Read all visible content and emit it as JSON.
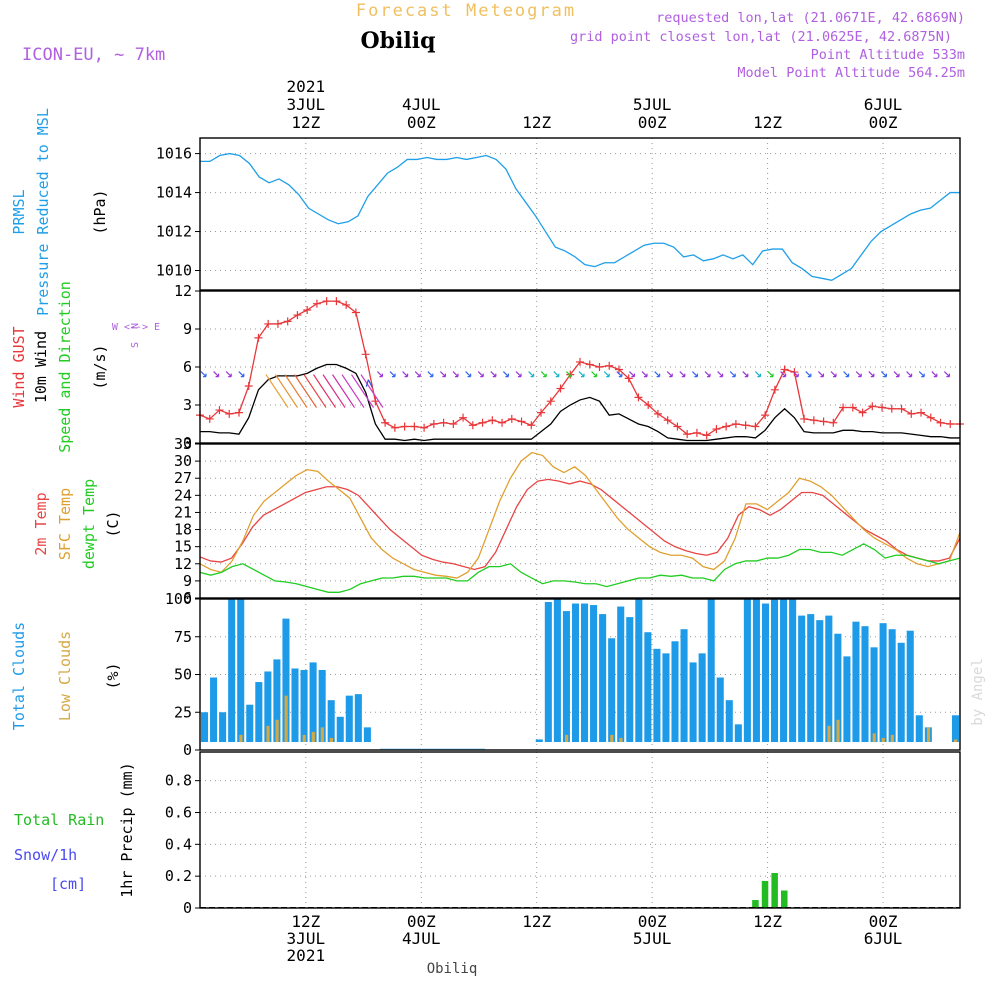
{
  "header": {
    "chart_name": "Forecast Meteogram",
    "location": "Obiliq",
    "model": "ICON-EU, ~ 7km",
    "requested": "requested lon,lat (21.0671E, 42.6869N)",
    "grid_point": "grid point closest lon,lat (21.0625E, 42.6875N)",
    "point_altitude": "Point Altitude 533m",
    "model_altitude": "Model Point Altitude 564.25m",
    "credit": "by Angel",
    "footer_location": "Obiliq"
  },
  "colors": {
    "pressure": "#1e9fe8",
    "gust": "#e8373a",
    "wind10m": "#000000",
    "wind_dir_label": "#b060e0",
    "temp2m": "#e84545",
    "sfc_temp": "#e0a030",
    "dewpt": "#22cc22",
    "total_clouds": "#1e9be8",
    "low_clouds": "#d4a843",
    "rain": "#22bb22",
    "snow": "#4a4af0",
    "header_purple": "#b060e0",
    "title_orange": "#f0c060"
  },
  "chart_data": [
    {
      "type": "line",
      "name": "pressure",
      "ylabels": [
        "PRMSL",
        "Pressure Reduced to MSL",
        "(hPa)"
      ],
      "ylim": [
        1009,
        1016.8
      ],
      "yticks": [
        1010,
        1012,
        1014,
        1016
      ],
      "series": [
        {
          "name": "PRMSL",
          "color_key": "pressure",
          "values": [
            1015.6,
            1015.6,
            1015.9,
            1016.0,
            1015.9,
            1015.5,
            1014.8,
            1014.5,
            1014.7,
            1014.4,
            1013.9,
            1013.2,
            1012.9,
            1012.6,
            1012.4,
            1012.5,
            1012.8,
            1013.8,
            1014.4,
            1015.0,
            1015.3,
            1015.7,
            1015.7,
            1015.8,
            1015.7,
            1015.7,
            1015.8,
            1015.7,
            1015.8,
            1015.9,
            1015.7,
            1015.2,
            1014.2,
            1013.5,
            1012.8,
            1012.0,
            1011.2,
            1011.0,
            1010.7,
            1010.3,
            1010.2,
            1010.4,
            1010.4,
            1010.7,
            1011.0,
            1011.3,
            1011.4,
            1011.4,
            1011.2,
            1010.7,
            1010.8,
            1010.5,
            1010.6,
            1010.8,
            1010.6,
            1010.8,
            1010.3,
            1011.0,
            1011.1,
            1011.1,
            1010.4,
            1010.1,
            1009.7,
            1009.6,
            1009.5,
            1009.8,
            1010.1,
            1010.8,
            1011.5,
            1012.0,
            1012.3,
            1012.6,
            1012.9,
            1013.1,
            1013.2,
            1013.6,
            1014.0,
            1014.0
          ]
        }
      ]
    },
    {
      "type": "line",
      "name": "wind",
      "ylabels": [
        "Wind GUST",
        "10m Wind",
        "Speed and Direction",
        "(m/s)"
      ],
      "ylim": [
        0,
        12
      ],
      "yticks": [
        0,
        3,
        6,
        9,
        12
      ],
      "compass": [
        "N",
        "W <--> E",
        "S"
      ],
      "series": [
        {
          "name": "Wind GUST",
          "color_key": "gust",
          "marker": "+",
          "values": [
            2.2,
            1.9,
            2.6,
            2.3,
            2.4,
            4.5,
            8.3,
            9.4,
            9.4,
            9.6,
            10.1,
            10.5,
            11.0,
            11.2,
            11.2,
            10.9,
            10.3,
            7.0,
            3.3,
            1.6,
            1.2,
            1.3,
            1.3,
            1.2,
            1.5,
            1.6,
            1.5,
            2.0,
            1.4,
            1.6,
            1.8,
            1.6,
            1.9,
            1.7,
            1.4,
            2.4,
            3.3,
            4.3,
            5.4,
            6.4,
            6.2,
            6.0,
            6.1,
            5.8,
            5.1,
            3.6,
            3.0,
            2.3,
            1.8,
            1.3,
            0.7,
            0.8,
            0.6,
            1.1,
            1.3,
            1.5,
            1.4,
            1.3,
            2.2,
            4.2,
            5.8,
            5.6,
            1.9,
            1.8,
            1.7,
            1.6,
            2.8,
            2.8,
            2.4,
            2.9,
            2.8,
            2.7,
            2.7,
            2.3,
            2.4,
            2.0,
            1.6,
            1.5,
            1.5
          ]
        },
        {
          "name": "10m Wind",
          "color_key": "wind10m",
          "values": [
            0.9,
            0.9,
            0.8,
            0.8,
            0.7,
            2.0,
            4.2,
            5.0,
            5.3,
            5.3,
            5.3,
            5.5,
            5.9,
            6.2,
            6.2,
            5.9,
            5.5,
            4.0,
            1.5,
            0.3,
            0.3,
            0.2,
            0.3,
            0.2,
            0.3,
            0.3,
            0.3,
            0.3,
            0.3,
            0.3,
            0.3,
            0.3,
            0.3,
            0.3,
            0.3,
            0.9,
            1.5,
            2.5,
            3.0,
            3.4,
            3.6,
            3.3,
            2.2,
            2.3,
            1.9,
            1.5,
            1.3,
            0.9,
            0.4,
            0.3,
            0.2,
            0.2,
            0.2,
            0.3,
            0.4,
            0.5,
            0.5,
            0.4,
            1.0,
            2.0,
            2.7,
            2.0,
            0.9,
            0.8,
            0.8,
            0.8,
            1.0,
            1.0,
            0.9,
            0.9,
            0.8,
            0.8,
            0.8,
            0.7,
            0.6,
            0.5,
            0.5,
            0.4,
            0.4
          ]
        }
      ],
      "direction_arrows": "vectors along the 5.4 m/s baseline (purple), strong wind barbs 3 JUL afternoon (orange/red/magenta), green/cyan near 4 JUL 12Z and 5 JUL 12Z"
    },
    {
      "type": "line",
      "name": "temperature",
      "ylabels": [
        "2m Temp",
        "SFC Temp",
        "dewpt Temp",
        "(C)"
      ],
      "ylim": [
        6,
        33
      ],
      "yticks": [
        6,
        9,
        12,
        15,
        18,
        21,
        24,
        27,
        30,
        33
      ],
      "series": [
        {
          "name": "2m Temp",
          "color_key": "temp2m",
          "values": [
            13.2,
            12.5,
            12.3,
            13.0,
            15.5,
            18.5,
            20.5,
            21.5,
            22.5,
            23.5,
            24.5,
            25.0,
            25.5,
            25.5,
            25.0,
            24.0,
            22.0,
            20.0,
            18.0,
            16.5,
            15.0,
            13.5,
            12.8,
            12.3,
            12.0,
            11.5,
            11.0,
            11.5,
            14.0,
            18.0,
            22.0,
            25.0,
            26.5,
            26.8,
            26.5,
            26.0,
            26.5,
            26.0,
            25.0,
            23.5,
            22.0,
            20.5,
            19.0,
            17.5,
            16.0,
            15.0,
            14.3,
            13.8,
            13.5,
            14.0,
            16.5,
            20.5,
            22.0,
            21.5,
            20.5,
            21.5,
            23.0,
            24.5,
            24.5,
            24.0,
            22.5,
            21.0,
            19.5,
            18.0,
            17.0,
            16.0,
            14.5,
            13.5,
            13.0,
            12.5,
            12.5,
            13.0,
            16.5
          ]
        },
        {
          "name": "SFC Temp",
          "color_key": "sfc_temp",
          "values": [
            12.0,
            11.0,
            10.5,
            12.5,
            16.0,
            20.5,
            23.0,
            24.5,
            26.0,
            27.5,
            28.5,
            28.2,
            26.5,
            25.0,
            23.5,
            20.0,
            16.5,
            14.5,
            13.0,
            12.0,
            11.0,
            10.5,
            10.0,
            9.8,
            9.5,
            10.5,
            13.0,
            18.0,
            23.0,
            27.0,
            30.0,
            31.5,
            31.0,
            29.0,
            28.0,
            29.0,
            27.5,
            25.0,
            22.5,
            20.0,
            18.0,
            16.5,
            15.0,
            14.0,
            13.5,
            13.5,
            13.0,
            11.5,
            11.0,
            12.5,
            16.5,
            22.5,
            22.5,
            21.5,
            23.0,
            24.5,
            27.0,
            26.5,
            25.5,
            24.0,
            22.0,
            20.0,
            18.0,
            16.5,
            15.5,
            14.5,
            13.0,
            12.0,
            11.5,
            12.0,
            12.5,
            17.5
          ]
        },
        {
          "name": "dewpt Temp",
          "color_key": "dewpt",
          "values": [
            10.5,
            10.0,
            10.5,
            11.5,
            12.0,
            11.0,
            10.0,
            9.0,
            8.8,
            8.5,
            8.0,
            7.5,
            7.0,
            7.0,
            7.5,
            8.5,
            9.0,
            9.5,
            9.5,
            9.8,
            9.8,
            9.5,
            9.5,
            9.5,
            9.0,
            9.0,
            10.5,
            11.5,
            11.5,
            12.0,
            10.5,
            9.5,
            8.5,
            9.0,
            9.0,
            8.8,
            8.5,
            8.5,
            8.0,
            8.5,
            9.0,
            9.5,
            9.5,
            10.0,
            9.8,
            10.0,
            9.5,
            9.5,
            9.0,
            11.0,
            12.0,
            12.5,
            12.5,
            13.0,
            13.0,
            13.5,
            14.5,
            14.5,
            14.0,
            14.0,
            13.5,
            14.5,
            15.5,
            14.5,
            13.0,
            13.5,
            13.5,
            13.0,
            12.5,
            12.0,
            12.5,
            13.0
          ]
        }
      ]
    },
    {
      "type": "bar",
      "name": "clouds",
      "ylabels": [
        "Total Clouds",
        "Low Clouds",
        "(%)"
      ],
      "ylim": [
        0,
        100
      ],
      "yticks": [
        0,
        25,
        50,
        75,
        100
      ],
      "series": [
        {
          "name": "Total Clouds",
          "color_key": "total_clouds",
          "values": [
            25,
            48,
            25,
            100,
            100,
            30,
            45,
            52,
            60,
            87,
            54,
            53,
            58,
            53,
            33,
            22,
            36,
            37,
            15,
            3,
            0,
            0,
            0,
            0,
            0,
            0,
            0,
            0,
            0,
            0,
            0,
            0,
            0,
            0,
            0,
            0,
            3,
            7,
            98,
            100,
            92,
            97,
            97,
            96,
            90,
            74,
            95,
            88,
            100,
            78,
            67,
            64,
            72,
            80,
            58,
            64,
            100,
            48,
            33,
            17,
            100,
            100,
            97,
            100,
            100,
            100,
            89,
            90,
            86,
            89,
            77,
            62,
            85,
            82,
            68,
            84,
            80,
            71,
            79,
            23,
            15,
            0,
            5,
            23
          ]
        },
        {
          "name": "Low Clouds",
          "color_key": "low_clouds",
          "values": [
            0,
            0,
            0,
            3,
            10,
            3,
            5,
            16,
            20,
            36,
            5,
            10,
            12,
            15,
            8,
            0,
            0,
            0,
            3,
            0,
            0,
            0,
            0,
            0,
            0,
            0,
            0,
            0,
            0,
            0,
            0,
            0,
            0,
            0,
            0,
            0,
            0,
            0,
            0,
            0,
            10,
            0,
            0,
            0,
            0,
            10,
            8,
            0,
            0,
            0,
            0,
            0,
            0,
            0,
            0,
            2,
            0,
            0,
            0,
            0,
            0,
            0,
            0,
            0,
            0,
            0,
            0,
            0,
            3,
            16,
            20,
            3,
            0,
            0,
            11,
            8,
            10,
            3,
            0,
            0,
            15,
            0,
            5,
            7
          ]
        }
      ]
    },
    {
      "type": "bar",
      "name": "precipitation",
      "ylabels": [
        "1hr Precip (mm)"
      ],
      "side_labels": [
        "Total Rain",
        "Snow/1h",
        "[cm]"
      ],
      "ylim": [
        0,
        0.98
      ],
      "yticks": [
        0,
        0.2,
        0.4,
        0.6,
        0.8
      ],
      "series": [
        {
          "name": "Total Rain",
          "color_key": "rain",
          "bars": [
            {
              "hour": 59,
              "value": 0.05
            },
            {
              "hour": 60,
              "value": 0.17
            },
            {
              "hour": 61,
              "value": 0.22
            },
            {
              "hour": 62,
              "value": 0.11
            }
          ]
        }
      ]
    }
  ],
  "time_axis": {
    "top_labels": [
      {
        "hour": 12,
        "lines": [
          "2021",
          "3JUL",
          "12Z"
        ]
      },
      {
        "hour": 24,
        "lines": [
          "4JUL",
          "00Z"
        ]
      },
      {
        "hour": 36,
        "lines": [
          "12Z"
        ]
      },
      {
        "hour": 48,
        "lines": [
          "5JUL",
          "00Z"
        ]
      },
      {
        "hour": 60,
        "lines": [
          "12Z"
        ]
      },
      {
        "hour": 72,
        "lines": [
          "6JUL",
          "00Z"
        ]
      }
    ],
    "bottom_labels": [
      {
        "hour": 12,
        "lines": [
          "12Z",
          "3JUL",
          "2021"
        ]
      },
      {
        "hour": 24,
        "lines": [
          "00Z",
          "4JUL"
        ]
      },
      {
        "hour": 36,
        "lines": [
          "12Z"
        ]
      },
      {
        "hour": 48,
        "lines": [
          "00Z",
          "5JUL"
        ]
      },
      {
        "hour": 60,
        "lines": [
          "12Z"
        ]
      },
      {
        "hour": 72,
        "lines": [
          "00Z",
          "6JUL"
        ]
      }
    ]
  }
}
